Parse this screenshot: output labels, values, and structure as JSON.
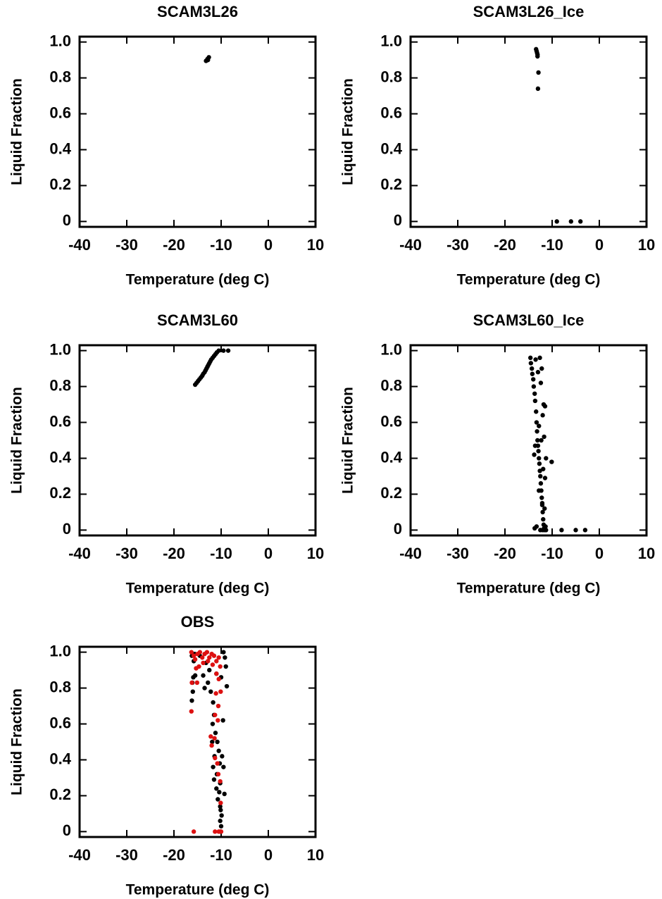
{
  "chart_data": [
    {
      "type": "scatter",
      "title": "SCAM3L26",
      "xlabel": "Temperature (deg C)",
      "ylabel": "Liquid Fraction",
      "xlim": [
        -40,
        10
      ],
      "ylim": [
        -0.03,
        1.03
      ],
      "xticks": [
        -40,
        -30,
        -20,
        -10,
        0,
        10
      ],
      "yticks": [
        0,
        0.2,
        0.4,
        0.6,
        0.8,
        {
          "value": 1,
          "label": "1.0"
        }
      ],
      "series": [
        {
          "color": "#000000",
          "x": [
            -13.2,
            -12.9,
            -12.6,
            -12.8
          ],
          "values": [
            0.895,
            0.905,
            0.915,
            0.9
          ]
        }
      ]
    },
    {
      "type": "scatter",
      "title": "SCAM3L26_Ice",
      "xlabel": "Temperature (deg C)",
      "ylabel": "Liquid Fraction",
      "xlim": [
        -40,
        10
      ],
      "ylim": [
        -0.03,
        1.03
      ],
      "xticks": [
        -40,
        -30,
        -20,
        -10,
        0,
        10
      ],
      "yticks": [
        0,
        0.2,
        0.4,
        0.6,
        0.8,
        {
          "value": 1,
          "label": "1.0"
        }
      ],
      "series": [
        {
          "color": "#000000",
          "x": [
            -13.4,
            -13.3,
            -13.2,
            -13.1,
            -13.1,
            -12.9,
            -13.0,
            -9,
            -6,
            -4
          ],
          "values": [
            0.96,
            0.95,
            0.94,
            0.93,
            0.92,
            0.83,
            0.74,
            0,
            0,
            0
          ]
        }
      ]
    },
    {
      "type": "scatter",
      "title": "SCAM3L60",
      "xlabel": "Temperature (deg C)",
      "ylabel": "Liquid Fraction",
      "xlim": [
        -40,
        10
      ],
      "ylim": [
        -0.03,
        1.03
      ],
      "xticks": [
        -40,
        -30,
        -20,
        -10,
        0,
        10
      ],
      "yticks": [
        0,
        0.2,
        0.4,
        0.6,
        0.8,
        {
          "value": 1,
          "label": "1.0"
        }
      ],
      "series": [
        {
          "color": "#000000",
          "x": [
            -15.5,
            -15.2,
            -14.9,
            -14.6,
            -14.3,
            -14.0,
            -13.8,
            -13.5,
            -13.3,
            -13.1,
            -12.9,
            -12.7,
            -12.5,
            -12.3,
            -12.1,
            -11.8,
            -11.5,
            -11.2,
            -10.9,
            -10.5,
            -9.5,
            -8.5
          ],
          "values": [
            0.81,
            0.82,
            0.83,
            0.84,
            0.85,
            0.86,
            0.87,
            0.88,
            0.89,
            0.9,
            0.91,
            0.92,
            0.93,
            0.94,
            0.95,
            0.96,
            0.97,
            0.98,
            0.99,
            1.0,
            1.0,
            1.0
          ]
        }
      ]
    },
    {
      "type": "scatter",
      "title": "SCAM3L60_Ice",
      "xlabel": "Temperature (deg C)",
      "ylabel": "Liquid Fraction",
      "xlim": [
        -40,
        10
      ],
      "ylim": [
        -0.03,
        1.03
      ],
      "xticks": [
        -40,
        -30,
        -20,
        -10,
        0,
        10
      ],
      "yticks": [
        0,
        0.2,
        0.4,
        0.6,
        0.8,
        {
          "value": 1,
          "label": "1.0"
        }
      ],
      "series": [
        {
          "color": "#000000",
          "x": [
            -14.6,
            -14.5,
            -14.3,
            -14.2,
            -14.0,
            -13.9,
            -13.7,
            -13.6,
            -13.4,
            -13.3,
            -13.2,
            -13.1,
            -13.0,
            -12.9,
            -12.8,
            -12.7,
            -12.6,
            -12.5,
            -12.4,
            -12.3,
            -12.2,
            -12.1,
            -12.0,
            -11.9,
            -11.8,
            -11.7,
            -11.6,
            -12.0,
            -12.5,
            -13.3,
            -13.7,
            -11.3,
            -11.4,
            -12.6,
            -12.2,
            -12.4,
            -11.8,
            -11.5,
            -12.0,
            -11.7,
            -12.8,
            -11.3,
            -10.1,
            -11.9,
            -11.5,
            -12.8,
            -12.1,
            -11.6,
            -13.5,
            -13.0,
            -13.8,
            -13.6,
            -12.3,
            -8,
            -5,
            -3
          ],
          "values": [
            0.96,
            0.93,
            0.9,
            0.87,
            0.84,
            0.8,
            0.76,
            0.72,
            0.66,
            0.6,
            0.55,
            0.5,
            0.47,
            0.44,
            0.4,
            0.37,
            0.33,
            0.3,
            0.26,
            0.22,
            0.18,
            0.14,
            0.1,
            0.06,
            0.03,
            0.01,
            0,
            0,
            0,
            0.02,
            0.01,
            0,
            0.02,
            0.96,
            0.9,
            0.82,
            0.7,
            0.69,
            0.64,
            0.52,
            0.58,
            0.4,
            0.38,
            0.34,
            0.29,
            0.22,
            0.15,
            0.12,
            0.95,
            0.88,
            0.42,
            0.47,
            0.5,
            0,
            0,
            0
          ]
        }
      ]
    },
    {
      "type": "scatter",
      "title": "OBS",
      "xlabel": "Temperature (deg C)",
      "ylabel": "Liquid Fraction",
      "xlim": [
        -40,
        10
      ],
      "ylim": [
        -0.03,
        1.03
      ],
      "xticks": [
        -40,
        -30,
        -20,
        -10,
        0,
        10
      ],
      "yticks": [
        0,
        0.2,
        0.4,
        0.6,
        0.8,
        {
          "value": 1,
          "label": "1.0"
        }
      ],
      "series": [
        {
          "color": "#000000",
          "x": [
            -16.2,
            -15.8,
            -15.5,
            -15.9,
            -16.1,
            -16,
            -16.2,
            -15.6,
            -14.5,
            -13.8,
            -13.5,
            -12.8,
            -12.2,
            -11.7,
            -11.5,
            -11.8,
            -11.2,
            -11.9,
            -10.8,
            -10.5,
            -11.4,
            -10.3,
            -11.7,
            -10.9,
            -11.5,
            -10.2,
            -11.0,
            -10.4,
            -9.3,
            -10.7,
            -10.2,
            -10.1,
            -9.9,
            -10.2,
            -10.0,
            -10.1,
            -9.5,
            -9.2,
            -9.0,
            -8.8,
            -10.0,
            -9.6,
            -11.0,
            -12.5,
            -13.2,
            -9.8,
            -9.5
          ],
          "values": [
            0.98,
            0.95,
            0.87,
            0.86,
            0.83,
            0.78,
            0.73,
            0.99,
            0.98,
            0.87,
            0.8,
            0.83,
            0.78,
            0.72,
            0.65,
            0.6,
            0.55,
            0.5,
            0.5,
            0.45,
            0.42,
            0.38,
            0.36,
            0.32,
            0.29,
            0.27,
            0.24,
            0.22,
            0.21,
            0.18,
            0.14,
            0.12,
            0.09,
            0.06,
            0.03,
            0,
            1.0,
            0.97,
            0.92,
            0.81,
            0.86,
            0.62,
            0.88,
            0.9,
            0.94,
            0.42,
            0.36
          ]
        },
        {
          "color": "#dd1111",
          "x": [
            -16.3,
            -15.8,
            -15.5,
            -15.0,
            -14.5,
            -14.0,
            -13.5,
            -13.0,
            -12.5,
            -12.0,
            -11.5,
            -11.0,
            -10.5,
            -10.2,
            -11.8,
            -12.8,
            -13.8,
            -14.7,
            -15.3,
            -16.2,
            -16.3,
            -15.1,
            -11,
            -10.5,
            -10.1,
            -11.1,
            -10.6,
            -11.3,
            -10.7,
            -12.2,
            -11.4,
            -12.0,
            -11.3,
            -10.8,
            -10.6,
            -10.2,
            -10.1,
            -15.8,
            -11.3,
            -10.5,
            -10.0
          ],
          "values": [
            1.0,
            0.98,
            0.96,
            0.99,
            1.0,
            0.97,
            0.99,
            1.0,
            0.97,
            0.99,
            0.98,
            0.95,
            0.97,
            0.92,
            0.93,
            0.95,
            0.94,
            0.92,
            0.91,
            0.83,
            0.67,
            0.83,
            0.88,
            0.85,
            0.78,
            0.77,
            0.7,
            0.65,
            0.62,
            0.53,
            0.52,
            0.48,
            0.41,
            0.38,
            0.32,
            0.28,
            0.16,
            0,
            0,
            0,
            0
          ]
        }
      ]
    }
  ]
}
